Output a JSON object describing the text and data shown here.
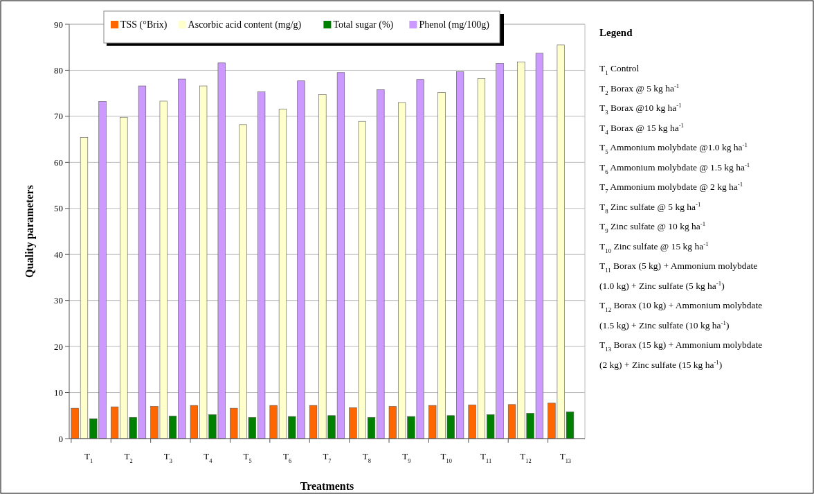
{
  "chart_data": {
    "type": "bar",
    "xlabel": "Treatments",
    "ylabel": "Quality parameters",
    "categories": [
      "T$_{1}$",
      "T$_{2}$",
      "T$_{3}$",
      "T$_{4}$",
      "T$_{5}$",
      "T$_{6}$",
      "T$_{7}$",
      "T$_{8}$",
      "T$_{9}$",
      "T$_{10}$",
      "T$_{11}$",
      "T$_{12}$",
      "T$_{13}$"
    ],
    "series": [
      {
        "name": "TSS (°Brix)",
        "color": "#ff6600",
        "values": [
          6.6,
          6.9,
          7.0,
          7.2,
          6.6,
          7.2,
          7.2,
          6.7,
          7.0,
          7.2,
          7.3,
          7.4,
          7.7
        ]
      },
      {
        "name": "Ascorbic acid content (mg/g)",
        "color": "#ffffcc",
        "values": [
          65.4,
          69.8,
          73.3,
          76.6,
          68.2,
          71.6,
          74.7,
          68.9,
          73.0,
          75.2,
          78.2,
          81.8,
          85.5
        ]
      },
      {
        "name": "Total sugar (%)",
        "color": "#008000",
        "values": [
          4.3,
          4.6,
          4.9,
          5.2,
          4.6,
          4.8,
          5.0,
          4.6,
          4.8,
          5.0,
          5.2,
          5.5,
          5.8
        ]
      },
      {
        "name": "Phenol (mg/100g)",
        "color": "#cc99ff",
        "values": [
          73.2,
          76.6,
          78.1,
          81.6,
          75.3,
          77.7,
          79.5,
          75.8,
          78.0,
          79.7,
          81.5,
          83.7,
          null
        ]
      }
    ],
    "ylim": [
      0,
      90
    ],
    "yticks": [
      0,
      10,
      20,
      30,
      40,
      50,
      60,
      70,
      80,
      90
    ],
    "grid": "y",
    "legend": "top",
    "annotations": [
      "Legend",
      "T$_{1}$ Control",
      "T$_{2}$ Borax @ 5 kg ha$^{-1}$",
      "T$_{3}$ Borax @10 kg ha$^{-1}$",
      "T$_{4}$ Borax @ 15 kg ha$^{-1}$",
      "T$_{5}$ Ammonium molybdate @1.0 kg ha$^{-1}$",
      "T$_{6}$ Ammonium molybdate @ 1.5 kg ha$^{-1}$",
      "T$_{7}$ Ammonium molybdate @ 2 kg ha$^{-1}$",
      "T$_{8}$ Zinc sulfate @ 5 kg ha$^{-1}$",
      "T$_{9}$ Zinc sulfate @ 10 kg ha$^{-1}$",
      "T$_{10}$ Zinc sulfate @ 15 kg ha$^{-1}$",
      "T$_{11}$ Borax (5 kg) + Ammonium molybdate",
      "(1.0 kg) + Zinc sulfate (5 kg ha$^{-1}$)",
      "T$_{12}$ Borax (10 kg) + Ammonium molybdate",
      "(1.5 kg) + Zinc sulfate (10 kg ha$^{-1}$)",
      "T$_{13}$ Borax (15 kg) + Ammonium molybdate",
      "(2 kg) + Zinc sulfate (15 kg ha$^{-1}$)"
    ]
  }
}
